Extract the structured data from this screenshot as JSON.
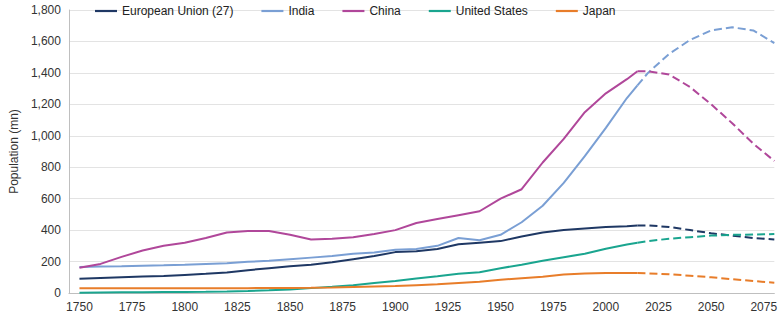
{
  "chart_data": {
    "type": "line",
    "y_label": "Population (mn)",
    "legend": "top-left",
    "grid": true,
    "xlim": [
      1745,
      2080
    ],
    "xticks": [
      1750,
      1775,
      1800,
      1825,
      1850,
      1875,
      1900,
      1925,
      1950,
      1975,
      2000,
      2025,
      2050,
      2075
    ],
    "ylim": [
      0,
      1800
    ],
    "yticks": [
      0,
      200,
      400,
      600,
      800,
      {
        "value": 1000,
        "label": "1,000"
      },
      {
        "value": 1200,
        "label": "1,200"
      },
      {
        "value": 1400,
        "label": "1,400"
      },
      {
        "value": 1600,
        "label": "1,600"
      },
      {
        "value": 1800,
        "label": "1,800"
      }
    ],
    "x": [
      1750,
      1760,
      1770,
      1780,
      1790,
      1800,
      1810,
      1820,
      1830,
      1840,
      1850,
      1860,
      1870,
      1880,
      1890,
      1900,
      1910,
      1920,
      1930,
      1940,
      1950,
      1960,
      1970,
      1980,
      1990,
      2000,
      2010,
      2015,
      2020,
      2030,
      2040,
      2050,
      2060,
      2070,
      2080
    ],
    "series": [
      {
        "name": "European Union (27)",
        "color": "#1f3864",
        "line_style": "solid",
        "values": [
          90,
          95,
          100,
          105,
          108,
          115,
          122,
          130,
          145,
          158,
          170,
          180,
          195,
          215,
          235,
          260,
          265,
          280,
          310,
          320,
          330,
          360,
          385,
          400,
          410,
          420,
          425,
          430,
          null,
          null,
          null,
          null,
          null,
          null,
          null
        ]
      },
      {
        "name": "India",
        "color": "#7a9fd4",
        "line_style": "solid",
        "values": [
          165,
          168,
          170,
          173,
          176,
          180,
          185,
          190,
          198,
          205,
          215,
          225,
          235,
          250,
          258,
          275,
          280,
          300,
          350,
          335,
          370,
          450,
          555,
          700,
          870,
          1050,
          1240,
          1320,
          null,
          null,
          null,
          null,
          null,
          null,
          null
        ]
      },
      {
        "name": "China",
        "color": "#b0479a",
        "line_style": "solid",
        "values": [
          160,
          185,
          230,
          270,
          300,
          320,
          350,
          385,
          395,
          395,
          370,
          340,
          345,
          355,
          375,
          400,
          445,
          470,
          495,
          520,
          600,
          660,
          830,
          980,
          1150,
          1270,
          1360,
          1410,
          null,
          null,
          null,
          null,
          null,
          null,
          null
        ]
      },
      {
        "name": "United States",
        "color": "#1aa58f",
        "line_style": "solid",
        "values": [
          2,
          3,
          4,
          5,
          6,
          7,
          8,
          10,
          13,
          17,
          23,
          31,
          40,
          50,
          63,
          76,
          92,
          106,
          123,
          132,
          158,
          180,
          205,
          228,
          250,
          282,
          309,
          320,
          null,
          null,
          null,
          null,
          null,
          null,
          null
        ]
      },
      {
        "name": "Japan",
        "color": "#e87d2a",
        "line_style": "solid",
        "values": [
          30,
          30,
          30,
          30,
          30,
          30,
          30,
          31,
          31,
          32,
          32,
          33,
          35,
          38,
          41,
          44,
          50,
          56,
          64,
          72,
          84,
          94,
          104,
          117,
          124,
          127,
          128,
          127,
          null,
          null,
          null,
          null,
          null,
          null,
          null
        ]
      },
      {
        "name": "European Union (27)",
        "color": "#1f3864",
        "line_style": "dashed",
        "values": [
          null,
          null,
          null,
          null,
          null,
          null,
          null,
          null,
          null,
          null,
          null,
          null,
          null,
          null,
          null,
          null,
          null,
          null,
          null,
          null,
          null,
          null,
          null,
          null,
          null,
          null,
          null,
          430,
          430,
          420,
          400,
          380,
          365,
          350,
          340
        ]
      },
      {
        "name": "India",
        "color": "#7a9fd4",
        "line_style": "dashed",
        "values": [
          null,
          null,
          null,
          null,
          null,
          null,
          null,
          null,
          null,
          null,
          null,
          null,
          null,
          null,
          null,
          null,
          null,
          null,
          null,
          null,
          null,
          null,
          null,
          null,
          null,
          null,
          null,
          1320,
          1400,
          1520,
          1610,
          1670,
          1690,
          1670,
          1590
        ]
      },
      {
        "name": "China",
        "color": "#b0479a",
        "line_style": "dashed",
        "values": [
          null,
          null,
          null,
          null,
          null,
          null,
          null,
          null,
          null,
          null,
          null,
          null,
          null,
          null,
          null,
          null,
          null,
          null,
          null,
          null,
          null,
          null,
          null,
          null,
          null,
          null,
          null,
          1410,
          1410,
          1390,
          1310,
          1200,
          1080,
          950,
          840
        ]
      },
      {
        "name": "United States",
        "color": "#1aa58f",
        "line_style": "dashed",
        "values": [
          null,
          null,
          null,
          null,
          null,
          null,
          null,
          null,
          null,
          null,
          null,
          null,
          null,
          null,
          null,
          null,
          null,
          null,
          null,
          null,
          null,
          null,
          null,
          null,
          null,
          null,
          null,
          320,
          330,
          345,
          355,
          365,
          370,
          372,
          375
        ]
      },
      {
        "name": "Japan",
        "color": "#e87d2a",
        "line_style": "dashed",
        "values": [
          null,
          null,
          null,
          null,
          null,
          null,
          null,
          null,
          null,
          null,
          null,
          null,
          null,
          null,
          null,
          null,
          null,
          null,
          null,
          null,
          null,
          null,
          null,
          null,
          null,
          null,
          null,
          127,
          125,
          119,
          110,
          100,
          88,
          76,
          65
        ]
      }
    ]
  }
}
